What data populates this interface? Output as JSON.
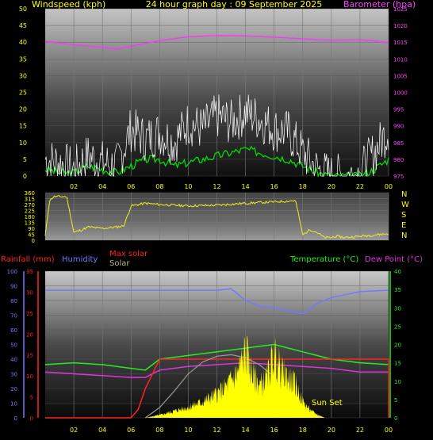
{
  "colors": {
    "windspeed": "#ffffff",
    "wind_avg": "#00dd00",
    "barometer": "#ff33ff",
    "direction": "#eeee22",
    "rainfall": "#ff2222",
    "humidity": "#7777ff",
    "max_solar": "#ff2222",
    "solar_curve": "#999999",
    "solar_fill": "#ffff00",
    "temperature": "#22ee22",
    "dewpoint": "#dd33dd",
    "text": "#ffff00"
  },
  "chart_data": [
    {
      "type": "line",
      "title": "24 hour graph day : 09 September 2025",
      "left_axis_label": "Windspeed (kph)",
      "right_axis_label": "Barometer (hpa)",
      "x_tick_labels": [
        "02",
        "04",
        "06",
        "08",
        "10",
        "12",
        "14",
        "16",
        "18",
        "20",
        "22",
        "00"
      ],
      "left_axis": {
        "ylim": [
          0,
          50
        ],
        "ticks": [
          0,
          5,
          10,
          15,
          20,
          25,
          30,
          35,
          40,
          45,
          50
        ]
      },
      "right_axis": {
        "ylim": [
          975,
          1025
        ],
        "ticks": [
          975,
          980,
          985,
          990,
          995,
          1000,
          1005,
          1010,
          1015,
          1020,
          1025
        ]
      },
      "series": [
        {
          "key": "barometer",
          "axis": "right",
          "x": [
            0,
            2,
            4,
            5,
            6,
            8,
            10,
            12,
            14,
            16,
            18,
            20,
            22,
            23,
            24
          ],
          "values": [
            1015.3,
            1014.2,
            1013.5,
            1012.9,
            1013.8,
            1015.5,
            1016.6,
            1017.0,
            1016.9,
            1016.5,
            1016.0,
            1015.6,
            1015.7,
            1015.4,
            1014.8
          ]
        },
        {
          "key": "wind_avg",
          "axis": "left",
          "x": [
            0,
            1,
            2,
            3,
            4,
            5,
            6,
            7,
            8,
            9,
            10,
            11,
            12,
            13,
            14,
            15,
            16,
            17,
            18,
            19,
            20,
            21,
            22,
            23,
            24
          ],
          "values": [
            2,
            1,
            1,
            3,
            2,
            1,
            3,
            5,
            5,
            3,
            4,
            5,
            6,
            7,
            8,
            7,
            6,
            5,
            3,
            1,
            0,
            0,
            0,
            2,
            5
          ]
        },
        {
          "key": "windspeed",
          "axis": "left",
          "x": [
            0,
            1,
            2,
            3,
            4,
            5,
            6,
            7,
            8,
            9,
            10,
            11,
            12,
            13,
            14,
            15,
            16,
            17,
            18,
            19,
            20,
            21,
            22,
            23,
            24
          ],
          "values": [
            5,
            4,
            2,
            6,
            4,
            3,
            14,
            11,
            13,
            10,
            16,
            14,
            18,
            16,
            19,
            17,
            14,
            13,
            7,
            2,
            0,
            0,
            1,
            7,
            14
          ]
        }
      ]
    },
    {
      "type": "scatter",
      "right_axis_labels": [
        "N",
        "W",
        "S",
        "E",
        "N"
      ],
      "left_axis": {
        "ylim": [
          0,
          360
        ],
        "ticks": [
          0,
          45,
          90,
          135,
          180,
          225,
          270,
          315,
          360
        ]
      },
      "series": [
        {
          "key": "direction",
          "x": [
            0,
            0.3,
            0.6,
            1,
            1.5,
            2,
            2.6,
            3,
            4,
            5,
            5.5,
            6,
            7,
            8,
            10,
            12,
            14,
            16,
            17.5,
            18,
            18.5,
            19,
            19.5,
            20,
            20.3,
            21,
            22,
            23,
            24
          ],
          "values": [
            30,
            300,
            330,
            330,
            330,
            60,
            80,
            100,
            90,
            100,
            110,
            260,
            280,
            270,
            260,
            265,
            280,
            290,
            300,
            40,
            80,
            60,
            20,
            20,
            30,
            20,
            30,
            40,
            50
          ]
        }
      ]
    },
    {
      "type": "line",
      "top_labels": [
        "Rainfall (mm)",
        "Humidity",
        "Max solar",
        "Solar",
        "Temperature (°C)",
        "Dew Point (°C)"
      ],
      "x_tick_labels": [
        "02",
        "04",
        "06",
        "08",
        "10",
        "12",
        "14",
        "16",
        "18",
        "20",
        "22",
        "00"
      ],
      "annotation": "Sun Set",
      "humidity_axis": {
        "ylim": [
          0,
          100
        ],
        "ticks": [
          0,
          10,
          20,
          30,
          40,
          50,
          60,
          70,
          80,
          90,
          100
        ]
      },
      "rainfall_axis": {
        "ylim": [
          0,
          35
        ],
        "ticks": [
          0,
          5,
          10,
          15,
          20,
          25,
          30,
          35
        ]
      },
      "temperature_axis": {
        "ylim": [
          0,
          40
        ],
        "ticks": [
          0,
          5,
          10,
          15,
          20,
          25,
          30,
          35,
          40
        ]
      },
      "series": [
        {
          "key": "humidity",
          "axis": "humidity",
          "x": [
            0,
            4,
            8,
            10,
            12,
            13,
            14,
            15,
            16,
            17,
            18,
            18.5,
            19,
            20,
            22,
            24
          ],
          "values": [
            87,
            87,
            87,
            87,
            87,
            88,
            80,
            76,
            75,
            73,
            71,
            74,
            78,
            82,
            86,
            87
          ]
        },
        {
          "key": "temperature",
          "axis": "temperature",
          "x": [
            0,
            2,
            4,
            6,
            7,
            8,
            10,
            12,
            14,
            16,
            17,
            18,
            19,
            20,
            22,
            24
          ],
          "values": [
            14.5,
            15,
            14.5,
            13.5,
            13,
            16,
            17,
            18,
            19,
            20,
            19,
            18,
            17,
            16,
            15,
            14.5
          ]
        },
        {
          "key": "dewpoint",
          "axis": "temperature",
          "x": [
            0,
            2,
            4,
            6,
            7,
            8,
            10,
            12,
            14,
            16,
            18,
            20,
            22,
            24
          ],
          "values": [
            12.5,
            12,
            11.5,
            11,
            11,
            13,
            14,
            14.5,
            15,
            14.5,
            14,
            13.5,
            12.5,
            12.5
          ]
        },
        {
          "key": "rainfall",
          "axis": "rainfall",
          "x": [
            0,
            6,
            6.5,
            7,
            8,
            8.5,
            24,
            24
          ],
          "values": [
            0,
            0,
            2,
            7,
            14,
            14,
            14,
            0
          ]
        },
        {
          "key": "max_solar",
          "axis": "humidity",
          "x": [
            7,
            8,
            9,
            10,
            11,
            12,
            13,
            14,
            15,
            16,
            17,
            18,
            19,
            19.5
          ],
          "values": [
            0,
            7,
            18,
            30,
            38,
            42,
            43,
            41,
            36,
            28,
            18,
            8,
            2,
            0
          ]
        },
        {
          "key": "solar",
          "axis": "humidity",
          "x": [
            7,
            8,
            9,
            10,
            11,
            12,
            12.5,
            13,
            13.5,
            14,
            14.5,
            15,
            15.5,
            16,
            16.5,
            17,
            17.5,
            18,
            18.5,
            19,
            19.5
          ],
          "values": [
            0,
            2,
            5,
            8,
            12,
            18,
            22,
            28,
            35,
            50,
            32,
            25,
            30,
            48,
            35,
            30,
            25,
            12,
            6,
            2,
            0
          ]
        }
      ]
    }
  ]
}
